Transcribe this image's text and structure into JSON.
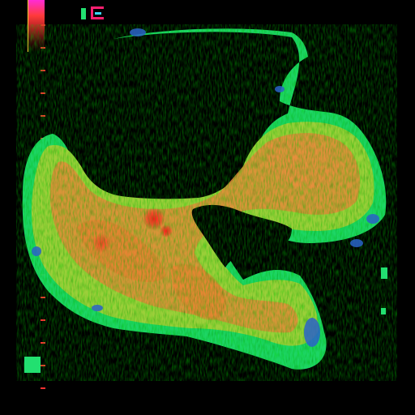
{
  "image": {
    "kind": "color-flow-ultrasound",
    "colors": {
      "background": "#000000",
      "tissue_core": "#e8883a",
      "tissue_mid": "#8fd63a",
      "tissue_edge": "#1fe06a",
      "noise_blue": "#2a63c8",
      "hotspot": "#ff2a2a",
      "accent_magenta": "#ff2bd6"
    }
  }
}
